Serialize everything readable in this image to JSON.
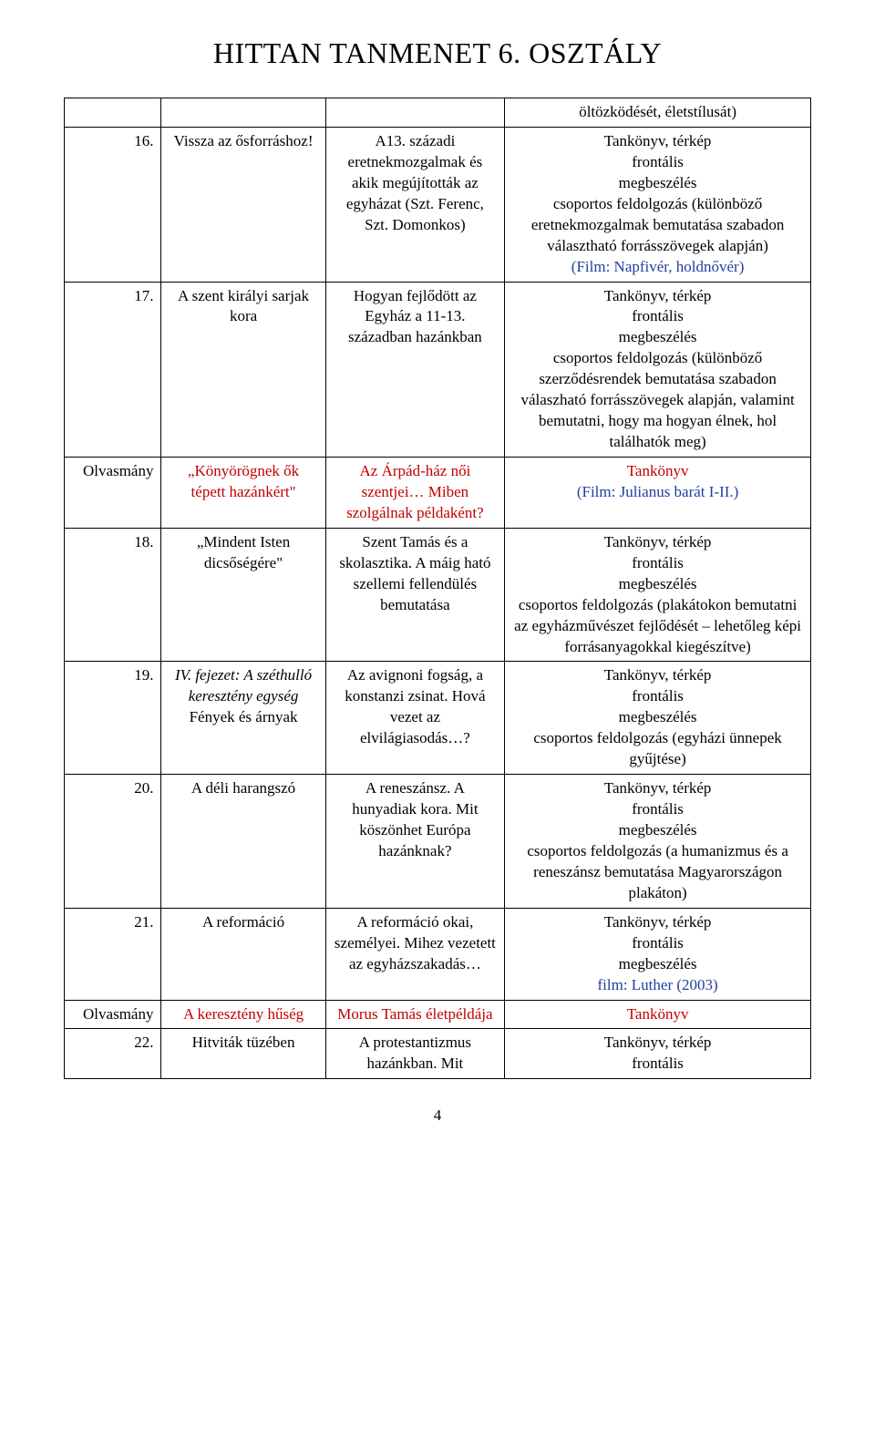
{
  "title": "HITTAN TANMENET 6. OSZTÁLY",
  "page_number": "4",
  "colors": {
    "red": "#c00000",
    "blue": "#1f3ea0",
    "text": "#000000",
    "background": "#ffffff",
    "border": "#000000"
  },
  "rows": [
    {
      "c1": "",
      "c2": "",
      "c3": "",
      "c4_plain": "öltözködését, életstílusát)"
    },
    {
      "c1": "16.",
      "c2": "Vissza az ősforráshoz!",
      "c3": "A13. századi eretnekmozgalmak és akik megújították az egyházat (Szt. Ferenc, Szt. Domonkos)",
      "c4_lines": [
        {
          "t": "Tankönyv, térkép"
        },
        {
          "t": "frontális"
        },
        {
          "t": "megbeszélés"
        },
        {
          "t": "csoportos feldolgozás (különböző eretnekmozgalmak bemutatása szabadon választható forrásszövegek alapján)"
        },
        {
          "t": "(Film: Napfivér, holdnővér)",
          "cls": "blue"
        }
      ]
    },
    {
      "c1": "17.",
      "c2": "A szent királyi sarjak kora",
      "c3": "Hogyan fejlődött az Egyház a 11-13. században hazánkban",
      "c4_lines": [
        {
          "t": "Tankönyv, térkép"
        },
        {
          "t": "frontális"
        },
        {
          "t": "megbeszélés"
        },
        {
          "t": "csoportos feldolgozás (különböző szerződésrendek bemutatása szabadon válaszható forrásszövegek alapján, valamint bemutatni, hogy ma hogyan élnek, hol találhatók meg)"
        }
      ]
    },
    {
      "c1": "Olvasmány",
      "c2_red": "„Könyörögnek ők tépett hazánkért\"",
      "c3_red": "Az Árpád-ház női szentjei… Miben szolgálnak példaként?",
      "c4_lines": [
        {
          "t": "Tankönyv",
          "cls": "red"
        },
        {
          "t": " "
        },
        {
          "t": "(Film: Julianus barát I-II.)",
          "cls": "blue"
        }
      ]
    },
    {
      "c1": "18.",
      "c2": "„Mindent Isten dicsőségére\"",
      "c3": "Szent Tamás és a skolasztika. A máig ható szellemi fellendülés bemutatása",
      "c4_lines": [
        {
          "t": "Tankönyv, térkép"
        },
        {
          "t": "frontális"
        },
        {
          "t": "megbeszélés"
        },
        {
          "t": "csoportos feldolgozás (plakátokon bemutatni az egyházművészet fejlődését – lehetőleg képi forrásanyagokkal kiegészítve)"
        }
      ]
    },
    {
      "c1": "19.",
      "c2_parts": [
        {
          "t": "IV. fejezet: A széthulló keresztény egység",
          "cls": "italic"
        },
        {
          "t": "Fények és árnyak"
        }
      ],
      "c3": "Az avignoni fogság, a konstanzi zsinat. Hová vezet az elvilágiasodás…?",
      "c4_lines": [
        {
          "t": "Tankönyv, térkép"
        },
        {
          "t": "frontális"
        },
        {
          "t": "megbeszélés"
        },
        {
          "t": "csoportos feldolgozás (egyházi ünnepek gyűjtése)"
        }
      ]
    },
    {
      "c1": "20.",
      "c2": "A déli harangszó",
      "c3": "A reneszánsz. A hunyadiak kora. Mit köszönhet Európa hazánknak?",
      "c4_lines": [
        {
          "t": "Tankönyv, térkép"
        },
        {
          "t": "frontális"
        },
        {
          "t": "megbeszélés"
        },
        {
          "t": "csoportos feldolgozás (a humanizmus és a reneszánsz bemutatása Magyarországon plakáton)"
        }
      ]
    },
    {
      "c1": "21.",
      "c2": "A reformáció",
      "c3": "A reformáció okai, személyei. Mihez vezetett az egyházszakadás…",
      "c4_lines": [
        {
          "t": "Tankönyv, térkép"
        },
        {
          "t": "frontális"
        },
        {
          "t": "megbeszélés"
        },
        {
          "t": "film: Luther (2003)",
          "cls": "blue"
        }
      ]
    },
    {
      "c1": "Olvasmány",
      "c2_red": "A keresztény hűség",
      "c3_red": "Morus Tamás életpéldája",
      "c4_lines": [
        {
          "t": "Tankönyv",
          "cls": "red"
        }
      ]
    },
    {
      "c1": "22.",
      "c2": "Hitviták tüzében",
      "c3": "A protestantizmus hazánkban. Mit",
      "c4_lines": [
        {
          "t": "Tankönyv, térkép"
        },
        {
          "t": "frontális"
        }
      ]
    }
  ]
}
